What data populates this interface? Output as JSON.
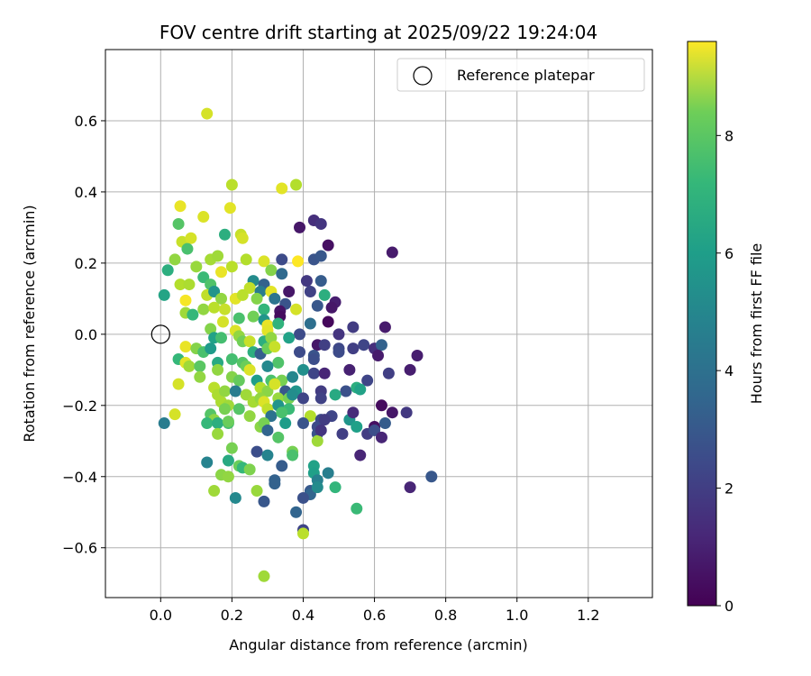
{
  "chart_data": {
    "type": "scatter",
    "title": "FOV centre drift starting at 2025/09/22 19:24:04",
    "xlabel": "Angular distance from reference (arcmin)",
    "ylabel": "Rotation from reference (arcmin)",
    "xlim": [
      -0.155,
      1.38
    ],
    "ylim": [
      -0.74,
      0.8
    ],
    "xticks": [
      0.0,
      0.2,
      0.4,
      0.6,
      0.8,
      1.0,
      1.2
    ],
    "xtick_labels": [
      "0.0",
      "0.2",
      "0.4",
      "0.6",
      "0.8",
      "1.0",
      "1.2"
    ],
    "yticks": [
      0.6,
      0.4,
      0.2,
      0.0,
      -0.2,
      -0.4,
      -0.6
    ],
    "ytick_labels": [
      "0.6",
      "0.4",
      "0.2",
      "0.0",
      "−0.2",
      "−0.4",
      "−0.6"
    ],
    "grid": true,
    "legend": {
      "location": "top-right",
      "entries": [
        "Reference platepar"
      ]
    },
    "reference_point": {
      "x": 0.0,
      "y": 0.0,
      "label": "Reference platepar",
      "marker": "open-circle"
    },
    "colorbar": {
      "label": "Hours from first FF file",
      "cmap": "viridis",
      "range": [
        0,
        9.6
      ],
      "ticks": [
        0,
        2,
        4,
        6,
        8
      ],
      "tick_labels": [
        "0",
        "2",
        "4",
        "6",
        "8"
      ]
    },
    "points": [
      [
        0.13,
        0.62,
        9.0
      ],
      [
        0.2,
        0.42,
        8.6
      ],
      [
        0.38,
        0.42,
        8.5
      ],
      [
        0.34,
        0.41,
        9.2
      ],
      [
        0.055,
        0.36,
        9.3
      ],
      [
        0.195,
        0.355,
        9.2
      ],
      [
        0.12,
        0.33,
        9.1
      ],
      [
        0.43,
        0.32,
        1.3
      ],
      [
        0.45,
        0.31,
        1.5
      ],
      [
        0.39,
        0.3,
        0.6
      ],
      [
        0.05,
        0.31,
        7.0
      ],
      [
        0.225,
        0.28,
        8.8
      ],
      [
        0.23,
        0.27,
        9.0
      ],
      [
        0.06,
        0.26,
        8.8
      ],
      [
        0.085,
        0.27,
        9.0
      ],
      [
        0.18,
        0.28,
        6.0
      ],
      [
        0.65,
        0.23,
        0.7
      ],
      [
        0.075,
        0.24,
        6.8
      ],
      [
        0.47,
        0.25,
        0.4
      ],
      [
        0.04,
        0.21,
        8.0
      ],
      [
        0.14,
        0.21,
        8.3
      ],
      [
        0.24,
        0.21,
        8.5
      ],
      [
        0.29,
        0.205,
        9.1
      ],
      [
        0.34,
        0.21,
        2.2
      ],
      [
        0.385,
        0.205,
        9.6
      ],
      [
        0.43,
        0.21,
        2.5
      ],
      [
        0.45,
        0.22,
        2.6
      ],
      [
        0.02,
        0.18,
        6.0
      ],
      [
        0.1,
        0.19,
        8.1
      ],
      [
        0.16,
        0.22,
        8.2
      ],
      [
        0.2,
        0.19,
        8.6
      ],
      [
        0.31,
        0.18,
        7.8
      ],
      [
        0.34,
        0.17,
        3.3
      ],
      [
        0.41,
        0.15,
        1.6
      ],
      [
        0.45,
        0.15,
        2.8
      ],
      [
        0.12,
        0.16,
        6.5
      ],
      [
        0.17,
        0.175,
        9.3
      ],
      [
        0.26,
        0.15,
        4.6
      ],
      [
        0.29,
        0.14,
        3.0
      ],
      [
        0.055,
        0.14,
        8.5
      ],
      [
        0.08,
        0.14,
        8.4
      ],
      [
        0.14,
        0.14,
        6.9
      ],
      [
        0.25,
        0.13,
        8.7
      ],
      [
        0.28,
        0.12,
        4.0
      ],
      [
        0.31,
        0.12,
        9.2
      ],
      [
        0.36,
        0.12,
        0.6
      ],
      [
        0.42,
        0.12,
        1.9
      ],
      [
        0.46,
        0.11,
        6.0
      ],
      [
        0.01,
        0.11,
        5.6
      ],
      [
        0.13,
        0.11,
        8.7
      ],
      [
        0.15,
        0.12,
        5.0
      ],
      [
        0.21,
        0.1,
        9.2
      ],
      [
        0.23,
        0.11,
        8.6
      ],
      [
        0.07,
        0.095,
        9.5
      ],
      [
        0.17,
        0.1,
        8.0
      ],
      [
        0.27,
        0.1,
        7.8
      ],
      [
        0.32,
        0.1,
        3.7
      ],
      [
        0.35,
        0.085,
        2.5
      ],
      [
        0.44,
        0.08,
        2.6
      ],
      [
        0.49,
        0.09,
        0.8
      ],
      [
        0.12,
        0.07,
        8.0
      ],
      [
        0.15,
        0.075,
        8.6
      ],
      [
        0.18,
        0.07,
        8.8
      ],
      [
        0.29,
        0.07,
        6.3
      ],
      [
        0.335,
        0.065,
        0.5
      ],
      [
        0.38,
        0.07,
        9.0
      ],
      [
        0.48,
        0.075,
        0.6
      ],
      [
        0.07,
        0.06,
        8.2
      ],
      [
        0.09,
        0.055,
        6.4
      ],
      [
        0.22,
        0.045,
        6.8
      ],
      [
        0.26,
        0.05,
        7.5
      ],
      [
        0.29,
        0.04,
        5.0
      ],
      [
        0.335,
        0.05,
        0.3
      ],
      [
        0.3,
        0.025,
        9.3
      ],
      [
        0.33,
        0.03,
        6.2
      ],
      [
        0.42,
        0.03,
        3.5
      ],
      [
        0.47,
        0.035,
        0.2
      ],
      [
        0.175,
        0.035,
        9.0
      ],
      [
        0.14,
        0.015,
        7.8
      ],
      [
        0.21,
        0.01,
        9.1
      ],
      [
        0.3,
        0.01,
        9.2
      ],
      [
        0.22,
        -0.005,
        8.0
      ],
      [
        0.39,
        0.0,
        2.2
      ],
      [
        0.5,
        0.0,
        1.5
      ],
      [
        0.54,
        0.02,
        1.7
      ],
      [
        0.63,
        0.02,
        0.7
      ],
      [
        0.15,
        -0.01,
        5.5
      ],
      [
        0.17,
        -0.01,
        6.7
      ],
      [
        0.23,
        -0.02,
        7.5
      ],
      [
        0.25,
        -0.02,
        8.8
      ],
      [
        0.29,
        -0.02,
        6.0
      ],
      [
        0.31,
        -0.01,
        8.0
      ],
      [
        0.36,
        -0.01,
        5.5
      ],
      [
        0.44,
        -0.03,
        0.6
      ],
      [
        0.46,
        -0.03,
        1.8
      ],
      [
        0.5,
        -0.04,
        2.1
      ],
      [
        0.57,
        -0.03,
        2.0
      ],
      [
        0.6,
        -0.04,
        1.3
      ],
      [
        0.62,
        -0.03,
        3.0
      ],
      [
        0.07,
        -0.035,
        9.3
      ],
      [
        0.1,
        -0.04,
        7.8
      ],
      [
        0.12,
        -0.05,
        6.8
      ],
      [
        0.14,
        -0.04,
        5.2
      ],
      [
        0.26,
        -0.05,
        6.0
      ],
      [
        0.28,
        -0.055,
        2.9
      ],
      [
        0.3,
        -0.04,
        7.4
      ],
      [
        0.32,
        -0.035,
        8.8
      ],
      [
        0.39,
        -0.05,
        2.2
      ],
      [
        0.43,
        -0.06,
        2.5
      ],
      [
        0.5,
        -0.05,
        2.2
      ],
      [
        0.54,
        -0.04,
        1.8
      ],
      [
        0.61,
        -0.06,
        0.7
      ],
      [
        0.05,
        -0.07,
        6.4
      ],
      [
        0.07,
        -0.08,
        9.2
      ],
      [
        0.08,
        -0.09,
        8.2
      ],
      [
        0.16,
        -0.08,
        5.8
      ],
      [
        0.2,
        -0.07,
        6.7
      ],
      [
        0.23,
        -0.08,
        7.0
      ],
      [
        0.33,
        -0.08,
        6.9
      ],
      [
        0.43,
        -0.07,
        2.3
      ],
      [
        0.72,
        -0.06,
        0.8
      ],
      [
        0.11,
        -0.09,
        7.1
      ],
      [
        0.16,
        -0.1,
        8.0
      ],
      [
        0.24,
        -0.09,
        7.4
      ],
      [
        0.25,
        -0.1,
        9.1
      ],
      [
        0.3,
        -0.09,
        4.5
      ],
      [
        0.4,
        -0.1,
        4.8
      ],
      [
        0.43,
        -0.11,
        2.0
      ],
      [
        0.46,
        -0.11,
        1.0
      ],
      [
        0.53,
        -0.1,
        0.9
      ],
      [
        0.64,
        -0.11,
        1.8
      ],
      [
        0.7,
        -0.1,
        0.8
      ],
      [
        0.11,
        -0.12,
        8.0
      ],
      [
        0.2,
        -0.12,
        7.8
      ],
      [
        0.22,
        -0.13,
        7.3
      ],
      [
        0.27,
        -0.13,
        5.3
      ],
      [
        0.31,
        -0.13,
        6.8
      ],
      [
        0.34,
        -0.13,
        7.6
      ],
      [
        0.37,
        -0.12,
        4.4
      ],
      [
        0.58,
        -0.13,
        2.0
      ],
      [
        0.05,
        -0.14,
        9.0
      ],
      [
        0.15,
        -0.15,
        8.6
      ],
      [
        0.16,
        -0.17,
        8.4
      ],
      [
        0.18,
        -0.16,
        8.0
      ],
      [
        0.21,
        -0.16,
        4.0
      ],
      [
        0.24,
        -0.17,
        8.2
      ],
      [
        0.28,
        -0.15,
        8.5
      ],
      [
        0.3,
        -0.16,
        7.9
      ],
      [
        0.32,
        -0.14,
        9.0
      ],
      [
        0.35,
        -0.16,
        2.6
      ],
      [
        0.38,
        -0.16,
        5.0
      ],
      [
        0.45,
        -0.16,
        1.7
      ],
      [
        0.52,
        -0.16,
        2.4
      ],
      [
        0.55,
        -0.15,
        6.0
      ],
      [
        0.56,
        -0.155,
        5.5
      ],
      [
        0.17,
        -0.19,
        8.4
      ],
      [
        0.19,
        -0.2,
        8.2
      ],
      [
        0.22,
        -0.21,
        7.0
      ],
      [
        0.26,
        -0.19,
        8.3
      ],
      [
        0.28,
        -0.18,
        8.0
      ],
      [
        0.33,
        -0.18,
        8.1
      ],
      [
        0.36,
        -0.18,
        7.6
      ],
      [
        0.37,
        -0.17,
        4.7
      ],
      [
        0.4,
        -0.18,
        2.0
      ],
      [
        0.45,
        -0.18,
        1.9
      ],
      [
        0.49,
        -0.17,
        5.8
      ],
      [
        0.62,
        -0.2,
        0.3
      ],
      [
        0.65,
        -0.22,
        0.6
      ],
      [
        0.69,
        -0.22,
        1.6
      ],
      [
        0.18,
        -0.21,
        7.6
      ],
      [
        0.29,
        -0.19,
        9.1
      ],
      [
        0.3,
        -0.21,
        8.7
      ],
      [
        0.33,
        -0.2,
        5.0
      ],
      [
        0.36,
        -0.21,
        6.5
      ],
      [
        0.04,
        -0.225,
        9.0
      ],
      [
        0.14,
        -0.225,
        7.0
      ],
      [
        0.15,
        -0.24,
        7.9
      ],
      [
        0.19,
        -0.25,
        6.8
      ],
      [
        0.25,
        -0.23,
        8.0
      ],
      [
        0.31,
        -0.23,
        3.6
      ],
      [
        0.34,
        -0.22,
        6.8
      ],
      [
        0.42,
        -0.23,
        8.5
      ],
      [
        0.45,
        -0.24,
        2.2
      ],
      [
        0.48,
        -0.23,
        2.0
      ],
      [
        0.53,
        -0.24,
        5.0
      ],
      [
        0.54,
        -0.22,
        1.2
      ],
      [
        0.01,
        -0.25,
        4.0
      ],
      [
        0.13,
        -0.25,
        6.4
      ],
      [
        0.16,
        -0.25,
        6.0
      ],
      [
        0.19,
        -0.245,
        7.4
      ],
      [
        0.28,
        -0.26,
        7.9
      ],
      [
        0.29,
        -0.25,
        7.6
      ],
      [
        0.3,
        -0.27,
        3.1
      ],
      [
        0.35,
        -0.25,
        5.3
      ],
      [
        0.4,
        -0.25,
        2.5
      ],
      [
        0.44,
        -0.26,
        2.2
      ],
      [
        0.46,
        -0.24,
        1.7
      ],
      [
        0.55,
        -0.26,
        5.4
      ],
      [
        0.6,
        -0.26,
        0.4
      ],
      [
        0.63,
        -0.25,
        2.8
      ],
      [
        0.16,
        -0.28,
        8.1
      ],
      [
        0.33,
        -0.29,
        7.0
      ],
      [
        0.44,
        -0.28,
        2.5
      ],
      [
        0.51,
        -0.28,
        1.8
      ],
      [
        0.58,
        -0.28,
        1.7
      ],
      [
        0.6,
        -0.27,
        2.3
      ],
      [
        0.62,
        -0.29,
        1.0
      ],
      [
        0.44,
        -0.3,
        8.2
      ],
      [
        0.45,
        -0.27,
        1.5
      ],
      [
        0.2,
        -0.32,
        7.6
      ],
      [
        0.27,
        -0.33,
        2.3
      ],
      [
        0.37,
        -0.33,
        7.6
      ],
      [
        0.37,
        -0.34,
        6.8
      ],
      [
        0.3,
        -0.34,
        4.3
      ],
      [
        0.56,
        -0.34,
        1.0
      ],
      [
        0.13,
        -0.36,
        4.3
      ],
      [
        0.19,
        -0.355,
        5.8
      ],
      [
        0.22,
        -0.37,
        7.4
      ],
      [
        0.23,
        -0.375,
        6.4
      ],
      [
        0.25,
        -0.38,
        7.7
      ],
      [
        0.34,
        -0.37,
        2.8
      ],
      [
        0.43,
        -0.37,
        5.5
      ],
      [
        0.17,
        -0.395,
        7.9
      ],
      [
        0.19,
        -0.4,
        8.0
      ],
      [
        0.32,
        -0.41,
        3.0
      ],
      [
        0.43,
        -0.39,
        5.4
      ],
      [
        0.44,
        -0.41,
        4.2
      ],
      [
        0.47,
        -0.39,
        4.1
      ],
      [
        0.76,
        -0.4,
        2.6
      ],
      [
        0.32,
        -0.42,
        3.0
      ],
      [
        0.42,
        -0.44,
        2.7
      ],
      [
        0.42,
        -0.45,
        3.1
      ],
      [
        0.44,
        -0.43,
        4.6
      ],
      [
        0.49,
        -0.43,
        6.3
      ],
      [
        0.7,
        -0.43,
        1.0
      ],
      [
        0.15,
        -0.44,
        8.2
      ],
      [
        0.27,
        -0.44,
        8.1
      ],
      [
        0.21,
        -0.46,
        4.5
      ],
      [
        0.29,
        -0.47,
        2.6
      ],
      [
        0.4,
        -0.46,
        2.4
      ],
      [
        0.55,
        -0.49,
        6.5
      ],
      [
        0.38,
        -0.5,
        3.1
      ],
      [
        0.4,
        -0.55,
        2.0
      ],
      [
        0.4,
        -0.56,
        8.6
      ],
      [
        0.29,
        -0.68,
        8.2
      ]
    ]
  }
}
